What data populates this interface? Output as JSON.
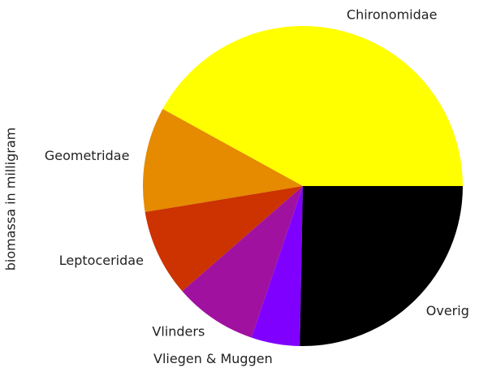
{
  "chart_data": {
    "type": "pie",
    "ylabel": "biomassa in milligram",
    "categories": [
      "Chironomidae",
      "Geometridae",
      "Leptoceridae",
      "Vlinders",
      "Vliegen & Muggen",
      "Overig"
    ],
    "values": [
      42.0,
      10.6,
      8.8,
      8.4,
      4.9,
      25.3
    ],
    "colors": [
      "#ffff00",
      "#e68a00",
      "#cc3300",
      "#a011a0",
      "#7f00ff",
      "#000000"
    ]
  }
}
